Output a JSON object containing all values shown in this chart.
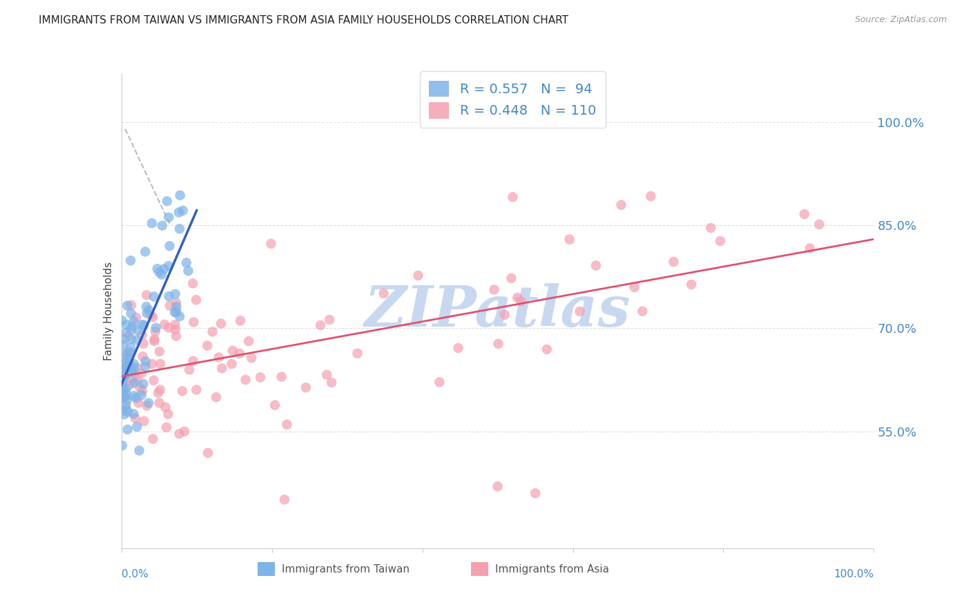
{
  "title": "IMMIGRANTS FROM TAIWAN VS IMMIGRANTS FROM ASIA FAMILY HOUSEHOLDS CORRELATION CHART",
  "source": "Source: ZipAtlas.com",
  "ylabel": "Family Households",
  "y_tick_labels": [
    "100.0%",
    "85.0%",
    "70.0%",
    "55.0%"
  ],
  "y_tick_values": [
    1.0,
    0.85,
    0.7,
    0.55
  ],
  "x_range": [
    0.0,
    1.0
  ],
  "y_range": [
    0.38,
    1.07
  ],
  "color_taiwan": "#7EB3E8",
  "color_asia": "#F4A0B0",
  "line_color_taiwan": "#3060C0",
  "line_color_asia": "#E05070",
  "dash_color": "#AAAAAA",
  "watermark_color": "#C8D8F0",
  "background_color": "#ffffff",
  "grid_color": "#dddddd",
  "tick_label_color": "#4488CC",
  "title_fontsize": 11,
  "source_fontsize": 9
}
